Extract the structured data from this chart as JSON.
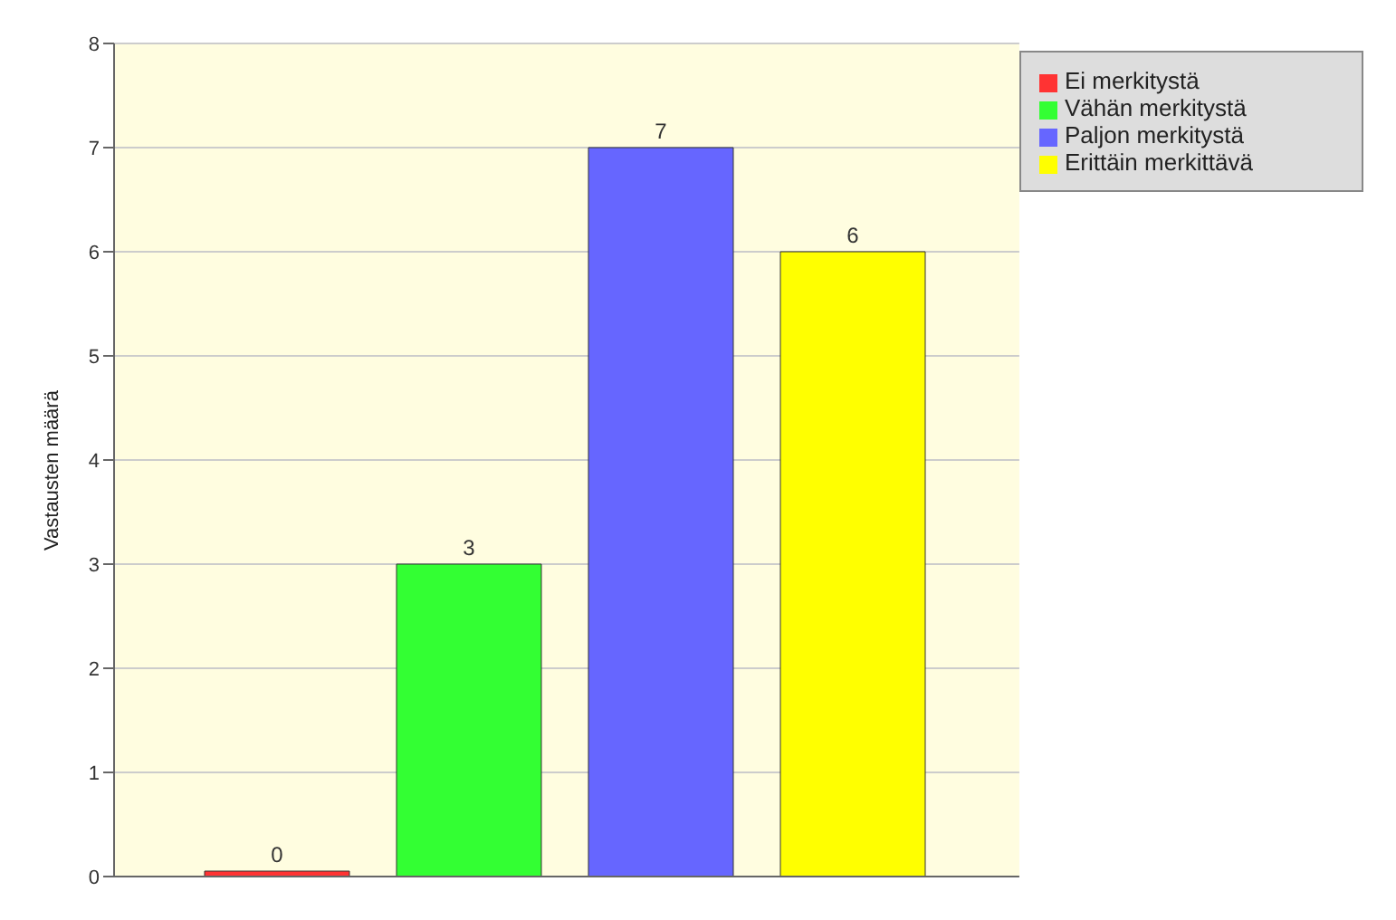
{
  "chart_data": {
    "type": "bar",
    "ylabel": "Vastausten määrä",
    "categories": [
      null
    ],
    "series": [
      {
        "name": "Ei merkitystä",
        "color": "#ff3333",
        "values": [
          0
        ]
      },
      {
        "name": "Vähän merkitystä",
        "color": "#33ff33",
        "values": [
          3
        ]
      },
      {
        "name": "Paljon merkitystä",
        "color": "#6666ff",
        "values": [
          7
        ]
      },
      {
        "name": "Erittäin merkittävä",
        "color": "#ffff00",
        "values": [
          6
        ]
      }
    ],
    "ylim": [
      0,
      8
    ],
    "yticks": [
      0,
      1,
      2,
      3,
      4,
      5,
      6,
      7,
      8
    ],
    "grid": "y",
    "legend": "top right",
    "data_labels": true
  }
}
